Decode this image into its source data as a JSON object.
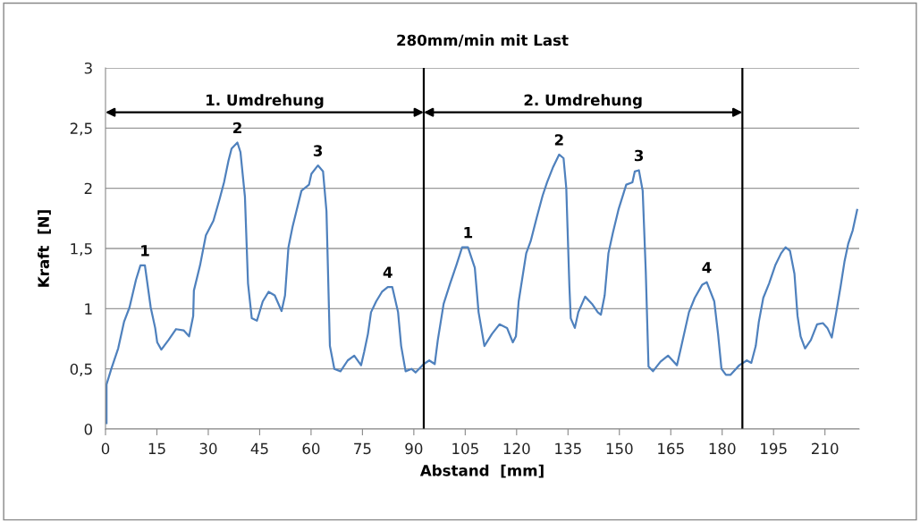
{
  "chart_data": {
    "type": "line",
    "title": "280mm/min mit Last",
    "xlabel": "Abstand  [mm]",
    "ylabel": "Kraft  [N]",
    "xlim": [
      0,
      220
    ],
    "xticks": [
      0,
      15,
      30,
      45,
      60,
      75,
      90,
      105,
      120,
      135,
      150,
      165,
      180,
      195,
      210
    ],
    "ylim": [
      0,
      3
    ],
    "yticks": [
      {
        "value": 0,
        "label": "0"
      },
      {
        "value": 0.5,
        "label": "0,5"
      },
      {
        "value": 1,
        "label": "1"
      },
      {
        "value": 1.5,
        "label": "1,5"
      },
      {
        "value": 2,
        "label": "2"
      },
      {
        "value": 2.5,
        "label": "2,5"
      },
      {
        "value": 3,
        "label": "3"
      }
    ],
    "grid": "y",
    "marker": "none",
    "line_style": "solid",
    "series": [
      {
        "color": "#4f81bd",
        "x": [
          0.3,
          0.3,
          1.7,
          3.7,
          5.4,
          7.0,
          8.9,
          10.2,
          11.5,
          13.2,
          14.5,
          15.1,
          16.3,
          18.4,
          20.6,
          22.8,
          24.4,
          25.6,
          25.8,
          27.6,
          29.3,
          31.5,
          33.3,
          34.6,
          35.9,
          36.8,
          38.5,
          39.4,
          40.7,
          41.6,
          42.7,
          44.2,
          45.9,
          47.6,
          49.4,
          51.4,
          52.4,
          53.4,
          54.6,
          55.9,
          57.2,
          59.4,
          60.1,
          62.0,
          63.5,
          64.5,
          65.5,
          66.8,
          68.6,
          70.7,
          72.6,
          74.6,
          75.5,
          76.6,
          77.5,
          79.0,
          80.7,
          82.4,
          83.7,
          85.4,
          86.3,
          87.6,
          89.3,
          90.5,
          92.9,
          94.5,
          96.1,
          97.0,
          98.7,
          100.6,
          102.4,
          104.1,
          105.8,
          107.8,
          108.9,
          110.6,
          112.8,
          115.0,
          117.2,
          118.9,
          119.8,
          120.6,
          122.8,
          124.1,
          125.9,
          127.6,
          128.9,
          130.7,
          132.4,
          133.7,
          134.5,
          135.4,
          135.8,
          137.0,
          138.0,
          140.0,
          142.0,
          143.7,
          144.6,
          145.7,
          146.8,
          148.1,
          149.8,
          152.0,
          153.8,
          154.5,
          155.7,
          156.8,
          157.7,
          158.5,
          159.8,
          162.0,
          164.2,
          166.8,
          168.1,
          170.3,
          172.0,
          174.2,
          175.5,
          177.7,
          178.8,
          179.8,
          181.1,
          182.4,
          185.0,
          187.2,
          188.5,
          189.8,
          190.7,
          192.0,
          193.7,
          195.5,
          197.2,
          198.5,
          199.8,
          201.1,
          202.0,
          202.9,
          204.2,
          205.9,
          207.7,
          209.4,
          210.7,
          212.0,
          213.3,
          214.6,
          215.7,
          216.8,
          218.1,
          219.4
        ],
        "values": [
          0.05,
          0.37,
          0.5,
          0.67,
          0.89,
          1.01,
          1.24,
          1.36,
          1.36,
          1.01,
          0.84,
          0.72,
          0.66,
          0.74,
          0.83,
          0.82,
          0.77,
          0.94,
          1.15,
          1.36,
          1.61,
          1.73,
          1.91,
          2.05,
          2.23,
          2.33,
          2.38,
          2.3,
          1.93,
          1.21,
          0.92,
          0.9,
          1.06,
          1.14,
          1.11,
          0.98,
          1.11,
          1.51,
          1.68,
          1.83,
          1.98,
          2.03,
          2.12,
          2.19,
          2.14,
          1.81,
          0.69,
          0.5,
          0.48,
          0.57,
          0.61,
          0.53,
          0.64,
          0.79,
          0.97,
          1.06,
          1.14,
          1.18,
          1.18,
          0.97,
          0.69,
          0.48,
          0.5,
          0.47,
          0.54,
          0.57,
          0.54,
          0.74,
          1.04,
          1.21,
          1.36,
          1.51,
          1.51,
          1.34,
          0.97,
          0.69,
          0.79,
          0.87,
          0.84,
          0.72,
          0.77,
          1.06,
          1.46,
          1.56,
          1.76,
          1.94,
          2.05,
          2.18,
          2.28,
          2.25,
          2.0,
          1.19,
          0.92,
          0.84,
          0.97,
          1.1,
          1.04,
          0.97,
          0.95,
          1.11,
          1.46,
          1.63,
          1.83,
          2.03,
          2.05,
          2.14,
          2.15,
          1.98,
          1.31,
          0.52,
          0.48,
          0.56,
          0.61,
          0.53,
          0.69,
          0.97,
          1.09,
          1.2,
          1.22,
          1.06,
          0.79,
          0.5,
          0.45,
          0.45,
          0.53,
          0.57,
          0.55,
          0.69,
          0.89,
          1.09,
          1.21,
          1.36,
          1.46,
          1.51,
          1.48,
          1.29,
          0.94,
          0.77,
          0.67,
          0.74,
          0.87,
          0.88,
          0.84,
          0.76,
          0.97,
          1.19,
          1.39,
          1.54,
          1.65,
          1.82
        ]
      }
    ],
    "ref_lines": [
      {
        "axis": "x",
        "value": 92.9,
        "color": "#000000",
        "line_style": "solid"
      },
      {
        "axis": "x",
        "value": 185.9,
        "color": "#000000",
        "line_style": "solid"
      }
    ],
    "annotations": [
      "1. Umdrehung",
      "2. Umdrehung",
      {
        "text": "1",
        "x": 11.5,
        "y": 1.36
      },
      {
        "text": "2",
        "x": 38.5,
        "y": 2.38
      },
      {
        "text": "3",
        "x": 62.0,
        "y": 2.19
      },
      {
        "text": "4",
        "x": 82.4,
        "y": 1.18
      },
      {
        "text": "1",
        "x": 105.8,
        "y": 1.51
      },
      {
        "text": "2",
        "x": 132.4,
        "y": 2.28
      },
      {
        "text": "3",
        "x": 155.7,
        "y": 2.15
      },
      {
        "text": "4",
        "x": 175.5,
        "y": 1.22
      }
    ]
  }
}
